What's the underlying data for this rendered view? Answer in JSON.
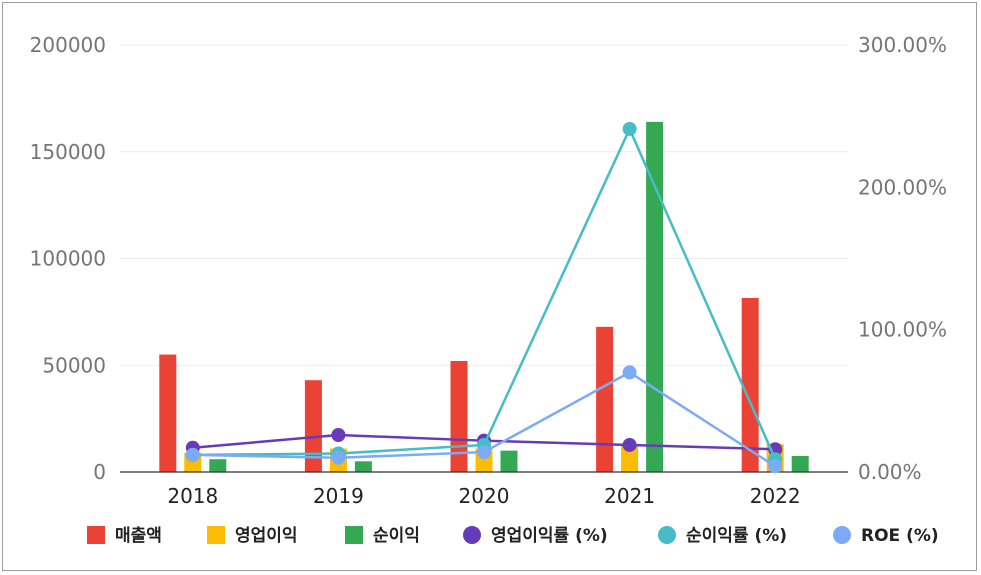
{
  "chart_data": {
    "type": "bar",
    "categories": [
      "2018",
      "2019",
      "2020",
      "2021",
      "2022"
    ],
    "y_left": {
      "ticks": [
        0,
        50000,
        100000,
        150000,
        200000
      ],
      "tick_labels": [
        "0",
        "50000",
        "100000",
        "150000",
        "200000"
      ],
      "ylim": [
        0,
        200000
      ]
    },
    "y_right": {
      "ticks": [
        0,
        1,
        2,
        3
      ],
      "tick_labels": [
        "0.00%",
        "100.00%",
        "200.00%",
        "300.00%"
      ],
      "ylim": [
        0,
        3
      ]
    },
    "bar_series": [
      {
        "name": "매출액",
        "color": "#ea4335",
        "values": [
          55000,
          43000,
          52000,
          68000,
          81500
        ]
      },
      {
        "name": "영업이익",
        "color": "#fbbc04",
        "values": [
          9000,
          11000,
          11000,
          12500,
          13000
        ]
      },
      {
        "name": "순이익",
        "color": "#34a853",
        "values": [
          6000,
          5000,
          10000,
          164000,
          7500
        ]
      }
    ],
    "line_series": [
      {
        "name": "영업이익률 (%)",
        "color": "#673ab7",
        "values": [
          0.17,
          0.26,
          0.22,
          0.19,
          0.16
        ]
      },
      {
        "name": "순이익률 (%)",
        "color": "#46bdc6",
        "values": [
          0.12,
          0.13,
          0.19,
          2.41,
          0.09
        ]
      },
      {
        "name": "ROE (%)",
        "color": "#7baaf7",
        "values": [
          0.12,
          0.1,
          0.14,
          0.7,
          0.04
        ]
      }
    ],
    "legend_position": "bottom",
    "grid": true
  }
}
